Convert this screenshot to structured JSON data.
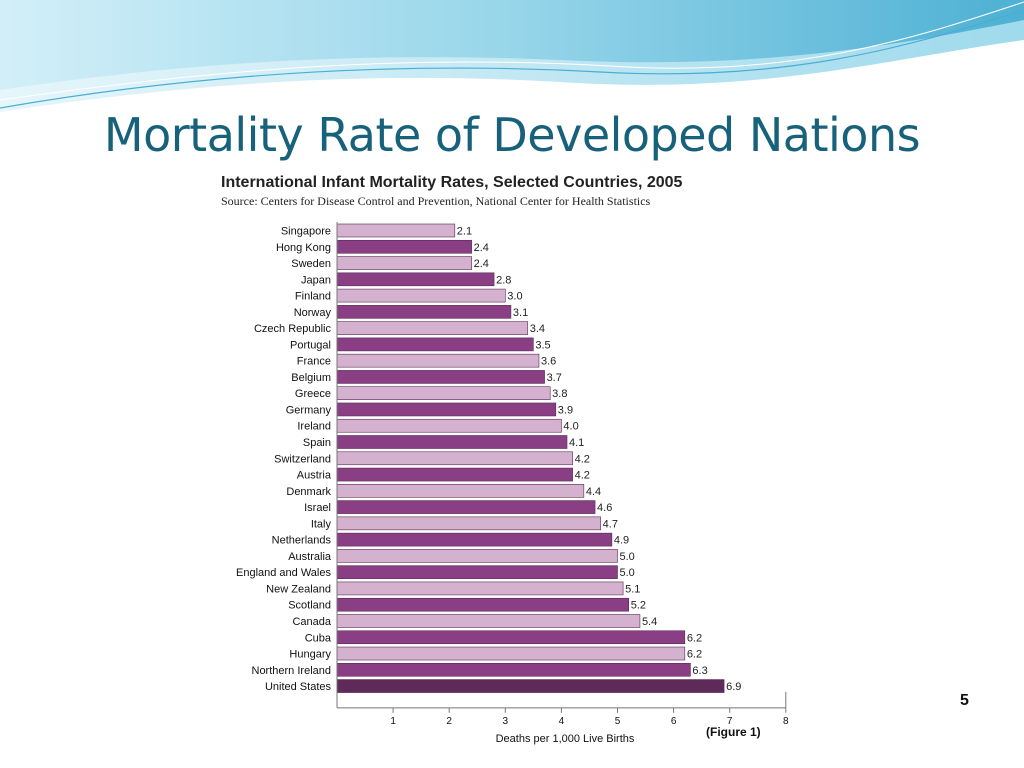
{
  "slide": {
    "title": "Mortality Rate of Developed Nations",
    "figure_caption": "(Figure 1)",
    "slide_number": "5"
  },
  "colors": {
    "title": "#17627a",
    "bar_dark": "#8a3f85",
    "bar_light": "#d4b2cf",
    "bar_last": "#5e2a5a",
    "header_gradient_start": "#b8e4f2",
    "header_gradient_end": "#4fb5d6"
  },
  "chart_data": {
    "type": "bar",
    "orientation": "horizontal",
    "title": "International Infant Mortality Rates, Selected Countries, 2005",
    "source": "Source: Centers for Disease Control and Prevention, National Center for Health Statistics",
    "xlabel": "Deaths per 1,000 Live Births",
    "xlim": [
      0,
      8
    ],
    "xticks": [
      1,
      2,
      3,
      4,
      5,
      6,
      7,
      8
    ],
    "grid": false,
    "categories": [
      "Singapore",
      "Hong Kong",
      "Sweden",
      "Japan",
      "Finland",
      "Norway",
      "Czech Republic",
      "Portugal",
      "France",
      "Belgium",
      "Greece",
      "Germany",
      "Ireland",
      "Spain",
      "Switzerland",
      "Austria",
      "Denmark",
      "Israel",
      "Italy",
      "Netherlands",
      "Australia",
      "England and Wales",
      "New Zealand",
      "Scotland",
      "Canada",
      "Cuba",
      "Hungary",
      "Northern Ireland",
      "United States"
    ],
    "values": [
      2.1,
      2.4,
      2.4,
      2.8,
      3.0,
      3.1,
      3.4,
      3.5,
      3.6,
      3.7,
      3.8,
      3.9,
      4.0,
      4.1,
      4.2,
      4.2,
      4.4,
      4.6,
      4.7,
      4.9,
      5.0,
      5.0,
      5.1,
      5.2,
      5.4,
      6.2,
      6.2,
      6.3,
      6.9
    ],
    "value_labels": [
      "2.1",
      "2.4",
      "2.4",
      "2.8",
      "3.0",
      "3.1",
      "3.4",
      "3.5",
      "3.6",
      "3.7",
      "3.8",
      "3.9",
      "4.0",
      "4.1",
      "4.2",
      "4.2",
      "4.4",
      "4.6",
      "4.7",
      "4.9",
      "5.0",
      "5.0",
      "5.1",
      "5.2",
      "5.4",
      "6.2",
      "6.2",
      "6.3",
      "6.9"
    ],
    "shades": [
      "light",
      "dark",
      "light",
      "dark",
      "light",
      "dark",
      "light",
      "dark",
      "light",
      "dark",
      "light",
      "dark",
      "light",
      "dark",
      "light",
      "dark",
      "light",
      "dark",
      "light",
      "dark",
      "light",
      "dark",
      "light",
      "dark",
      "light",
      "dark",
      "light",
      "dark",
      "last"
    ]
  }
}
